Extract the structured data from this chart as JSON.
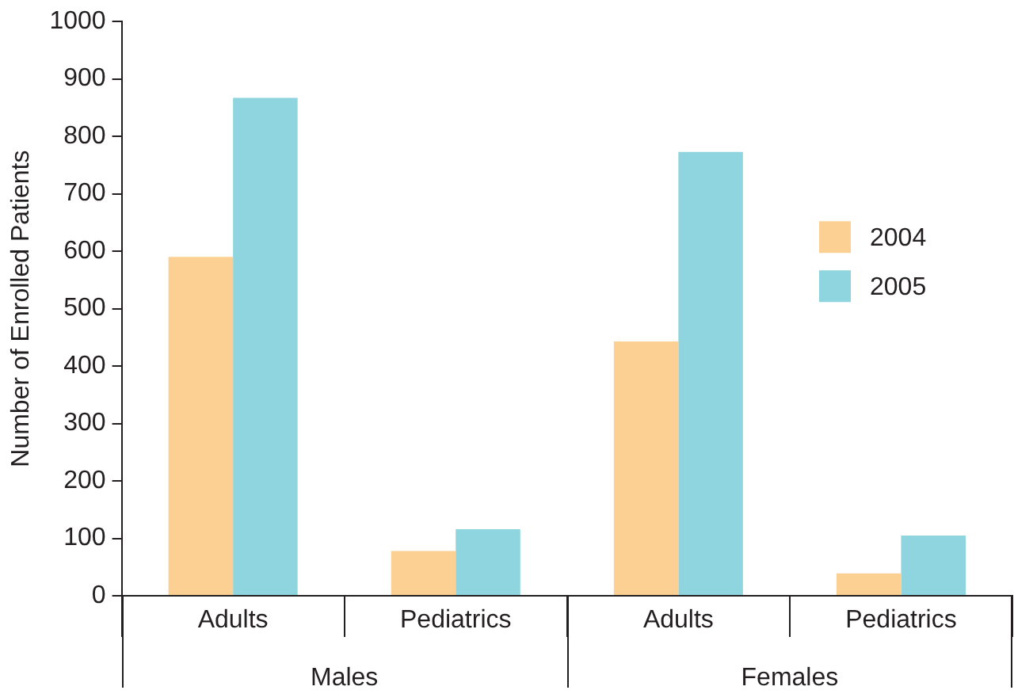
{
  "chart_data": {
    "type": "bar",
    "ylabel": "Number of Enrolled Patients",
    "categories": [
      "Adults",
      "Pediatrics",
      "Adults",
      "Pediatrics"
    ],
    "series": [
      {
        "name": "2004",
        "color": "#fcd092",
        "values": [
          590,
          78,
          443,
          39
        ]
      },
      {
        "name": "2005",
        "color": "#8fd5e0",
        "values": [
          867,
          116,
          773,
          105
        ]
      }
    ],
    "annotations": [
      "Males",
      "Females"
    ],
    "ylim": [
      0,
      1000
    ],
    "yticks": [
      0,
      100,
      200,
      300,
      400,
      500,
      600,
      700,
      800,
      900,
      1000
    ],
    "legend": "right"
  }
}
